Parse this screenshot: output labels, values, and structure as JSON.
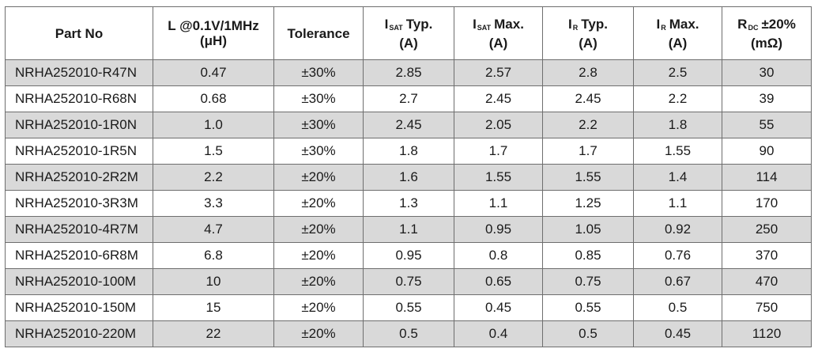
{
  "headers": [
    {
      "lines": [
        "Part No"
      ]
    },
    {
      "lines": [
        "L @0.1V/1MHz",
        "(μH)"
      ]
    },
    {
      "lines": [
        "Tolerance"
      ]
    },
    {
      "symbol": "I",
      "subscript": "SAT",
      "rest": "Typ.",
      "unit": "(A)"
    },
    {
      "symbol": "I",
      "subscript": "SAT",
      "rest": "Max.",
      "unit": "(A)"
    },
    {
      "symbol": "I",
      "subscript": "R",
      "rest": "Typ.",
      "unit": "(A)"
    },
    {
      "symbol": "I",
      "subscript": "R",
      "rest": "Max.",
      "unit": "(A)"
    },
    {
      "symbol": "R",
      "subscript": "DC",
      "rest": "±20%",
      "unit": "(mΩ)"
    }
  ],
  "rows": [
    [
      "NRHA252010-R47N",
      "0.47",
      "±30%",
      "2.85",
      "2.57",
      "2.8",
      "2.5",
      "30"
    ],
    [
      "NRHA252010-R68N",
      "0.68",
      "±30%",
      "2.7",
      "2.45",
      "2.45",
      "2.2",
      "39"
    ],
    [
      "NRHA252010-1R0N",
      "1.0",
      "±30%",
      "2.45",
      "2.05",
      "2.2",
      "1.8",
      "55"
    ],
    [
      "NRHA252010-1R5N",
      "1.5",
      "±30%",
      "1.8",
      "1.7",
      "1.7",
      "1.55",
      "90"
    ],
    [
      "NRHA252010-2R2M",
      "2.2",
      "±20%",
      "1.6",
      "1.55",
      "1.55",
      "1.4",
      "114"
    ],
    [
      "NRHA252010-3R3M",
      "3.3",
      "±20%",
      "1.3",
      "1.1",
      "1.25",
      "1.1",
      "170"
    ],
    [
      "NRHA252010-4R7M",
      "4.7",
      "±20%",
      "1.1",
      "0.95",
      "1.05",
      "0.92",
      "250"
    ],
    [
      "NRHA252010-6R8M",
      "6.8",
      "±20%",
      "0.95",
      "0.8",
      "0.85",
      "0.76",
      "370"
    ],
    [
      "NRHA252010-100M",
      "10",
      "±20%",
      "0.75",
      "0.65",
      "0.75",
      "0.67",
      "470"
    ],
    [
      "NRHA252010-150M",
      "15",
      "±20%",
      "0.55",
      "0.45",
      "0.55",
      "0.5",
      "750"
    ],
    [
      "NRHA252010-220M",
      "22",
      "±20%",
      "0.5",
      "0.4",
      "0.5",
      "0.45",
      "1120"
    ]
  ],
  "colors": {
    "shaded_row": "#d9d9d9",
    "plain_row": "#ffffff",
    "border": "#6e6e6e"
  }
}
